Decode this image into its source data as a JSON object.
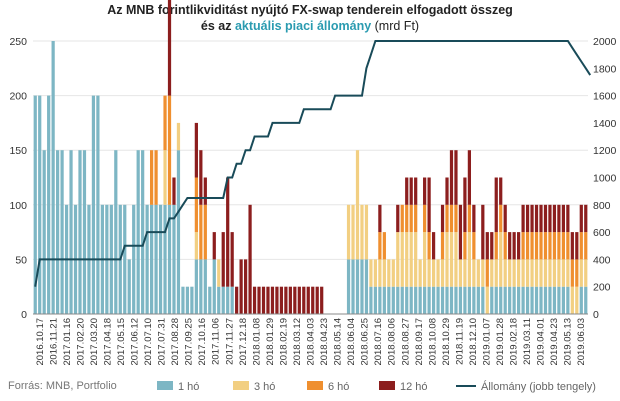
{
  "title": {
    "line1": "Az MNB forintlikviditást nyújtó FX-swap tenderein elfogadott összeg",
    "line2_prefix": "és az",
    "line2_accent": "aktuális piaci állomány",
    "line2_suffix": "(mrd Ft)"
  },
  "source": "Forrás: MNB, Portfolio",
  "chart_data": {
    "type": "bar",
    "stacked": true,
    "colors": {
      "1 hó": "#7db6c4",
      "3 hó": "#f2cf82",
      "6 hó": "#ef8f2f",
      "12 hó": "#8c1e1e",
      "Állomány (jobb tengely)": "#194b59"
    },
    "y_left": {
      "min": 0,
      "max": 250,
      "ticks": [
        0,
        50,
        100,
        150,
        200,
        250
      ]
    },
    "y_right": {
      "min": 0,
      "max": 2000,
      "ticks": [
        0,
        200,
        400,
        600,
        800,
        1000,
        1200,
        1400,
        1600,
        1800,
        2000
      ]
    },
    "x_tick_labels": [
      "2016.10.17",
      "2016.11.21",
      "2017.01.16",
      "2017.02.20",
      "2017.03.20",
      "2017.04.18",
      "2017.05.15",
      "2017.06.12",
      "2017.07.10",
      "2017.07.31",
      "2017.08.28",
      "2017.09.25",
      "2017.10.16",
      "2017.11.06",
      "2017.11.27",
      "2017.12.18",
      "2018.01.08",
      "2018.01.29",
      "2018.02.19",
      "2018.03.12",
      "2018.04.03",
      "2018.04.23",
      "2018.05.14",
      "2018.06.04",
      "2018.06.25",
      "2018.07.16",
      "2018.08.06",
      "2018.08.27",
      "2018.09.17",
      "2018.10.08",
      "2018.10.29",
      "2018.11.19",
      "2018.12.10",
      "2019.01.07",
      "2019.01.28",
      "2019.02.18",
      "2019.03.11",
      "2019.04.01",
      "2019.04.23",
      "2019.05.13",
      "2019.06.03"
    ],
    "series": [
      {
        "name": "1 hó",
        "values": [
          200,
          200,
          150,
          200,
          250,
          150,
          150,
          100,
          150,
          100,
          150,
          150,
          100,
          200,
          200,
          100,
          100,
          100,
          150,
          100,
          100,
          50,
          100,
          150,
          150,
          100,
          100,
          100,
          100,
          100,
          100,
          100,
          150,
          25,
          25,
          25,
          50,
          50,
          50,
          25,
          50,
          25,
          25,
          25,
          25,
          0,
          0,
          0,
          0,
          0,
          0,
          0,
          0,
          0,
          0,
          0,
          0,
          0,
          0,
          0,
          0,
          0,
          0,
          0,
          0,
          0,
          0,
          0,
          0,
          0,
          50,
          50,
          50,
          50,
          50,
          25,
          25,
          25,
          25,
          25,
          25,
          25,
          25,
          25,
          25,
          25,
          25,
          25,
          25,
          25,
          25,
          25,
          25,
          25,
          25,
          25,
          25,
          25,
          25,
          25,
          25,
          0,
          25,
          25,
          25,
          25,
          25,
          25,
          25,
          25,
          25,
          25,
          25,
          25,
          25,
          25,
          25,
          25,
          25,
          25,
          0,
          0,
          25,
          25
        ]
      },
      {
        "name": "3 hó",
        "values": [
          0,
          0,
          0,
          0,
          0,
          0,
          0,
          0,
          0,
          0,
          0,
          0,
          0,
          0,
          0,
          0,
          0,
          0,
          0,
          0,
          0,
          0,
          0,
          0,
          0,
          0,
          0,
          0,
          0,
          50,
          0,
          0,
          25,
          0,
          0,
          0,
          25,
          0,
          0,
          0,
          0,
          25,
          0,
          0,
          0,
          0,
          0,
          0,
          0,
          0,
          0,
          0,
          0,
          0,
          0,
          0,
          0,
          0,
          0,
          0,
          0,
          0,
          0,
          0,
          0,
          0,
          0,
          0,
          0,
          0,
          50,
          50,
          100,
          50,
          50,
          25,
          25,
          25,
          25,
          25,
          25,
          50,
          50,
          50,
          50,
          50,
          25,
          50,
          25,
          25,
          25,
          25,
          50,
          50,
          50,
          25,
          25,
          50,
          25,
          25,
          25,
          25,
          25,
          25,
          50,
          25,
          25,
          25,
          25,
          25,
          25,
          25,
          25,
          25,
          25,
          25,
          25,
          25,
          25,
          25,
          25,
          25,
          25,
          25
        ]
      },
      {
        "name": "6 hó",
        "values": [
          0,
          0,
          0,
          0,
          0,
          0,
          0,
          0,
          0,
          0,
          0,
          0,
          0,
          0,
          0,
          0,
          0,
          0,
          0,
          0,
          0,
          0,
          0,
          0,
          0,
          0,
          50,
          50,
          0,
          50,
          100,
          0,
          0,
          0,
          0,
          0,
          50,
          50,
          50,
          0,
          0,
          0,
          0,
          0,
          0,
          0,
          0,
          0,
          0,
          0,
          0,
          0,
          0,
          0,
          0,
          0,
          0,
          0,
          0,
          0,
          0,
          0,
          0,
          0,
          0,
          0,
          0,
          0,
          0,
          0,
          0,
          0,
          0,
          0,
          0,
          0,
          0,
          25,
          25,
          0,
          0,
          0,
          25,
          25,
          25,
          25,
          0,
          25,
          25,
          0,
          0,
          25,
          25,
          25,
          25,
          0,
          25,
          25,
          25,
          0,
          0,
          25,
          0,
          25,
          25,
          25,
          0,
          0,
          0,
          25,
          25,
          25,
          25,
          25,
          25,
          25,
          25,
          25,
          25,
          25,
          25,
          25,
          25,
          25
        ]
      },
      {
        "name": "12 hó",
        "values": [
          0,
          0,
          0,
          0,
          0,
          0,
          0,
          0,
          0,
          0,
          0,
          0,
          0,
          0,
          0,
          0,
          0,
          0,
          0,
          0,
          0,
          0,
          0,
          0,
          0,
          0,
          0,
          0,
          0,
          0,
          100,
          25,
          0,
          0,
          0,
          0,
          50,
          50,
          25,
          0,
          25,
          0,
          50,
          100,
          50,
          25,
          50,
          50,
          100,
          25,
          25,
          25,
          25,
          25,
          25,
          25,
          25,
          25,
          25,
          25,
          25,
          25,
          25,
          25,
          25,
          0,
          0,
          0,
          0,
          0,
          0,
          0,
          0,
          0,
          0,
          0,
          0,
          25,
          0,
          0,
          0,
          25,
          0,
          25,
          25,
          25,
          0,
          25,
          50,
          25,
          0,
          25,
          25,
          50,
          50,
          50,
          50,
          50,
          25,
          0,
          50,
          25,
          25,
          50,
          25,
          25,
          25,
          25,
          25,
          25,
          25,
          25,
          25,
          25,
          25,
          25,
          25,
          25,
          25,
          25,
          25,
          25,
          25,
          25
        ]
      },
      {
        "name": "Állomány (jobb tengely)",
        "axis": "right",
        "values": [
          200,
          400,
          400,
          400,
          400,
          400,
          400,
          400,
          400,
          400,
          400,
          400,
          400,
          400,
          400,
          400,
          400,
          400,
          400,
          400,
          500,
          500,
          500,
          500,
          500,
          600,
          600,
          600,
          600,
          600,
          700,
          700,
          750,
          800,
          850,
          850,
          850,
          850,
          850,
          850,
          850,
          850,
          850,
          1000,
          1000,
          1100,
          1100,
          1200,
          1200,
          1300,
          1300,
          1300,
          1300,
          1400,
          1400,
          1400,
          1400,
          1400,
          1400,
          1400,
          1500,
          1500,
          1500,
          1500,
          1500,
          1500,
          1500,
          1600,
          1600,
          1600,
          1600,
          1600,
          1600,
          1600,
          1800,
          1900,
          2000,
          2000,
          2000,
          2000,
          2000,
          2000,
          2000,
          2000,
          2000,
          2000,
          2000,
          2000,
          2000,
          2000,
          2000,
          2000,
          2000,
          2000,
          2000,
          2000,
          2000,
          2000,
          2000,
          2000,
          2000,
          2000,
          2000,
          2000,
          2000,
          2000,
          2000,
          2000,
          2000,
          2000,
          2000,
          2000,
          2000,
          2000,
          2000,
          2000,
          2000,
          2000,
          2000,
          2000,
          1950,
          1900,
          1850,
          1800,
          1750
        ]
      }
    ]
  }
}
